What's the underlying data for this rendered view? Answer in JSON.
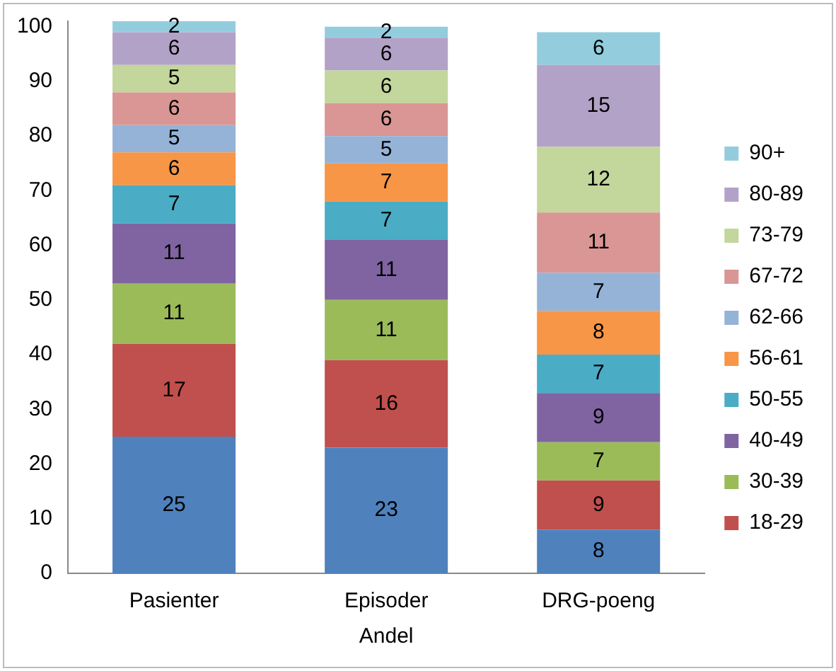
{
  "chart_data": {
    "type": "bar",
    "stacked": true,
    "xlabel": "Andel",
    "categories": [
      "Pasienter",
      "Episoder",
      "DRG-poeng"
    ],
    "ylim": [
      0,
      101
    ],
    "yticks": [
      0,
      10,
      20,
      30,
      40,
      50,
      60,
      70,
      80,
      90,
      100
    ],
    "grid": false,
    "legend": "right",
    "data_labels": true,
    "series": [
      {
        "color": "#4f81bd",
        "values": [
          25,
          23,
          8
        ]
      },
      {
        "name": "18-29",
        "color": "#c0504d",
        "values": [
          17,
          16,
          9
        ]
      },
      {
        "name": "30-39",
        "color": "#9bbb59",
        "values": [
          11,
          11,
          7
        ]
      },
      {
        "name": "40-49",
        "color": "#8064a2",
        "values": [
          11,
          11,
          9
        ]
      },
      {
        "name": "50-55",
        "color": "#4bacc6",
        "values": [
          7,
          7,
          7
        ]
      },
      {
        "name": "56-61",
        "color": "#f79646",
        "values": [
          6,
          7,
          8
        ]
      },
      {
        "name": "62-66",
        "color": "#95b3d7",
        "values": [
          5,
          5,
          7
        ]
      },
      {
        "name": "67-72",
        "color": "#d99694",
        "values": [
          6,
          6,
          11
        ]
      },
      {
        "name": "73-79",
        "color": "#c3d69b",
        "values": [
          5,
          6,
          12
        ]
      },
      {
        "name": "80-89",
        "color": "#b3a2c7",
        "values": [
          6,
          6,
          15
        ]
      },
      {
        "name": "90+",
        "color": "#93cddd",
        "values": [
          2,
          2,
          6
        ]
      }
    ]
  }
}
